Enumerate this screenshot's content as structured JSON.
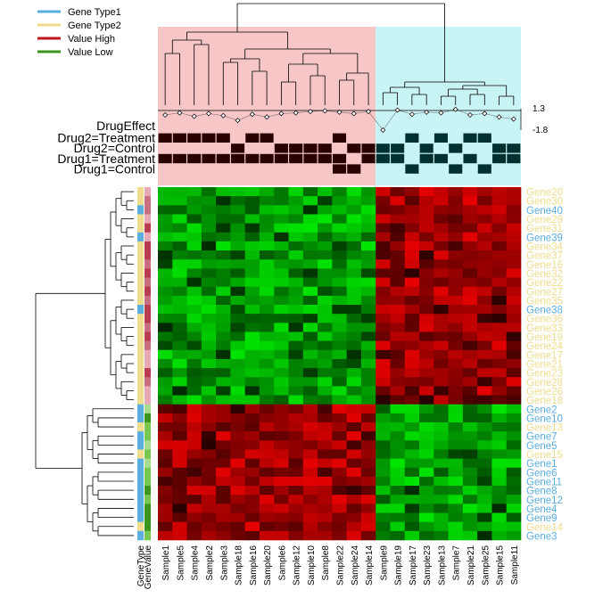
{
  "legend": [
    {
      "label": "Gene Type1",
      "color": "#5aaee0"
    },
    {
      "label": "Gene Type2",
      "color": "#f0dc8c"
    },
    {
      "label": "Value High",
      "color": "#c0141e"
    },
    {
      "label": "Value Low",
      "color": "#3c961e"
    }
  ],
  "colors": {
    "high": "#e60000",
    "low": "#00dc00",
    "mid": "#000000",
    "type1": "#5aaee0",
    "type2": "#f0dc8c",
    "cluster_left": "#f7c6c6",
    "cluster_right": "#c9f4f6",
    "track_on": "#2a0000",
    "track_on_right": "#013030",
    "gv_high": "#b83c50",
    "gv_mid": "#e8a8b4",
    "gv_low": "#3c961e",
    "gv_low_light": "#78c850"
  },
  "drug_effect_scale": {
    "max": "1.3",
    "min": "-1.8"
  },
  "track_labels": [
    "DrugEffect",
    "Drug2=Treatment",
    "Drug2=Control",
    "Drug1=Treatment",
    "Drug1=Control"
  ],
  "col_bar_labels": [
    "GeneType",
    "GeneValue"
  ],
  "chart_data": {
    "type": "heatmap",
    "columns": [
      "Sample1",
      "Sample5",
      "Sample4",
      "Sample2",
      "Sample3",
      "Sample18",
      "Sample16",
      "Sample20",
      "Sample6",
      "Sample12",
      "Sample10",
      "Sample8",
      "Sample22",
      "Sample24",
      "Sample14",
      "Sample9",
      "Sample19",
      "Sample17",
      "Sample23",
      "Sample13",
      "Sample7",
      "Sample21",
      "Sample25",
      "Sample15",
      "Sample11"
    ],
    "rows": [
      {
        "name": "Gene20",
        "type": "Type2"
      },
      {
        "name": "Gene30",
        "type": "Type2"
      },
      {
        "name": "Gene40",
        "type": "Type1"
      },
      {
        "name": "Gene29",
        "type": "Type2"
      },
      {
        "name": "Gene31",
        "type": "Type2"
      },
      {
        "name": "Gene39",
        "type": "Type1"
      },
      {
        "name": "Gene34",
        "type": "Type2"
      },
      {
        "name": "Gene37",
        "type": "Type2"
      },
      {
        "name": "Gene16",
        "type": "Type2"
      },
      {
        "name": "Gene32",
        "type": "Type2"
      },
      {
        "name": "Gene22",
        "type": "Type2"
      },
      {
        "name": "Gene27",
        "type": "Type2"
      },
      {
        "name": "Gene35",
        "type": "Type2"
      },
      {
        "name": "Gene38",
        "type": "Type1"
      },
      {
        "name": "Gene36",
        "type": "Type2"
      },
      {
        "name": "Gene33",
        "type": "Type2"
      },
      {
        "name": "Gene19",
        "type": "Type2"
      },
      {
        "name": "Gene24",
        "type": "Type2"
      },
      {
        "name": "Gene17",
        "type": "Type2"
      },
      {
        "name": "Gene21",
        "type": "Type2"
      },
      {
        "name": "Gene23",
        "type": "Type2"
      },
      {
        "name": "Gene28",
        "type": "Type2"
      },
      {
        "name": "Gene26",
        "type": "Type2"
      },
      {
        "name": "Gene18",
        "type": "Type2"
      },
      {
        "name": "Gene2",
        "type": "Type1"
      },
      {
        "name": "Gene10",
        "type": "Type1"
      },
      {
        "name": "Gene13",
        "type": "Type2"
      },
      {
        "name": "Gene7",
        "type": "Type1"
      },
      {
        "name": "Gene5",
        "type": "Type1"
      },
      {
        "name": "Gene15",
        "type": "Type2"
      },
      {
        "name": "Gene1",
        "type": "Type1"
      },
      {
        "name": "Gene6",
        "type": "Type1"
      },
      {
        "name": "Gene11",
        "type": "Type1"
      },
      {
        "name": "Gene8",
        "type": "Type1"
      },
      {
        "name": "Gene12",
        "type": "Type1"
      },
      {
        "name": "Gene4",
        "type": "Type1"
      },
      {
        "name": "Gene9",
        "type": "Type1"
      },
      {
        "name": "Gene14",
        "type": "Type2"
      },
      {
        "name": "Gene3",
        "type": "Type1"
      }
    ],
    "column_clusters": [
      {
        "name": "left",
        "columns": 15
      },
      {
        "name": "right",
        "columns": 10
      }
    ],
    "row_clusters": [
      {
        "name": "top",
        "rows": 24
      },
      {
        "name": "bottom",
        "rows": 15
      }
    ],
    "pattern": "Top row cluster: green (low) in left sample cluster, red (high) in right sample cluster. Bottom row cluster: red (high) in left sample cluster, green (low) in right sample cluster.",
    "drug_effect": [
      0.4,
      0.7,
      0.2,
      0.6,
      0.3,
      -0.4,
      0.5,
      0.1,
      0.6,
      0.7,
      0.9,
      1.0,
      0.8,
      0.6,
      0.9,
      -1.8,
      1.1,
      0.5,
      0.8,
      0.7,
      1.2,
      0.4,
      0.6,
      0.1,
      -0.2
    ],
    "tracks": {
      "Drug2=Treatment": [
        1,
        1,
        1,
        1,
        1,
        0,
        1,
        1,
        0,
        0,
        0,
        0,
        1,
        0,
        0,
        0,
        0,
        1,
        0,
        1,
        0,
        1,
        1,
        0,
        0
      ],
      "Drug2=Control": [
        0,
        0,
        0,
        0,
        0,
        1,
        0,
        0,
        1,
        1,
        1,
        1,
        0,
        1,
        1,
        1,
        1,
        0,
        1,
        0,
        1,
        0,
        0,
        1,
        1
      ],
      "Drug1=Treatment": [
        1,
        1,
        1,
        1,
        1,
        1,
        1,
        1,
        1,
        1,
        1,
        1,
        1,
        0,
        1,
        1,
        1,
        0,
        1,
        1,
        0,
        1,
        0,
        1,
        1
      ],
      "Drug1=Control": [
        0,
        0,
        0,
        0,
        0,
        0,
        0,
        0,
        0,
        0,
        0,
        0,
        1,
        1,
        0,
        0,
        0,
        1,
        0,
        0,
        1,
        0,
        1,
        0,
        0
      ]
    }
  }
}
